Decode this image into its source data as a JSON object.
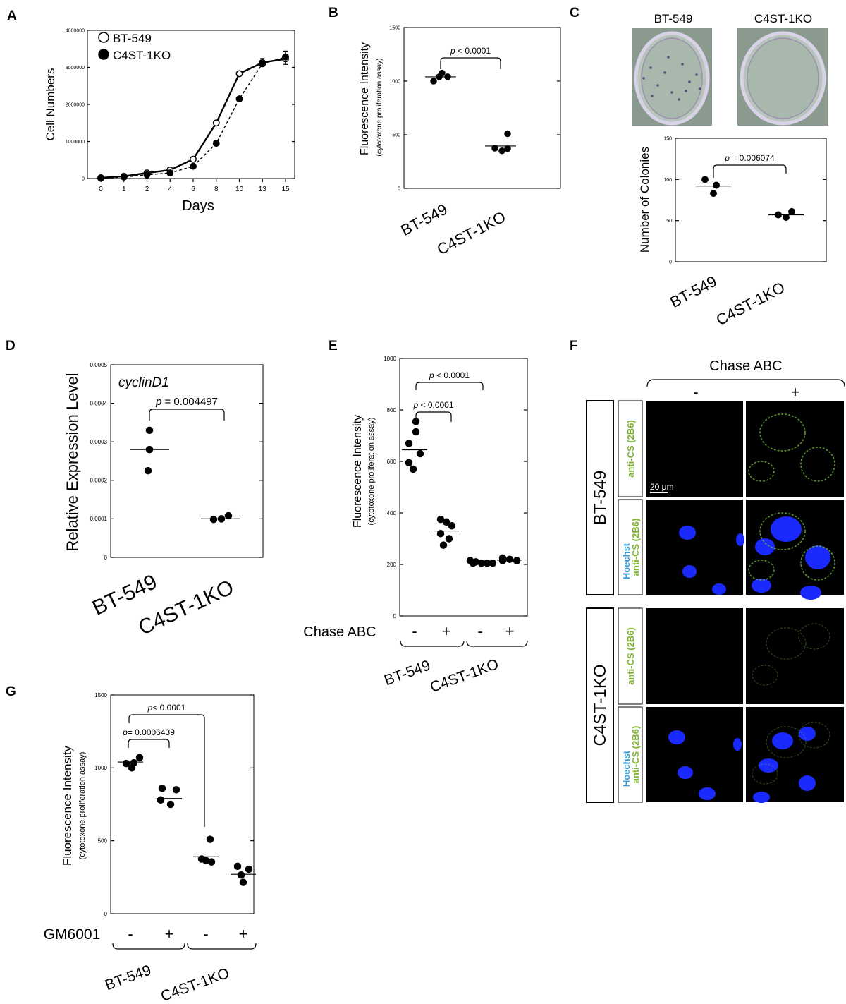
{
  "panel_labels": {
    "A": "A",
    "B": "B",
    "C": "C",
    "D": "D",
    "E": "E",
    "F": "F",
    "G": "G"
  },
  "chart_data": [
    {
      "panel": "A",
      "type": "line",
      "xlabel": "Days",
      "ylabel": "Cell Numbers",
      "x": [
        "0",
        "1",
        "2",
        "4",
        "6",
        "8",
        "10",
        "13",
        "15"
      ],
      "yticks": [
        "0",
        "1000000",
        "2000000",
        "3000000",
        "4000000"
      ],
      "ylim": [
        0,
        4000000
      ],
      "legend_position": "top-left",
      "series": [
        {
          "name": "BT-549",
          "marker": "open",
          "line": "solid",
          "values": [
            20000,
            60000,
            150000,
            230000,
            520000,
            1500000,
            2830000,
            3130000,
            3230000
          ]
        },
        {
          "name": "C4ST-1KO",
          "marker": "filled",
          "line": "dashed",
          "values": [
            10000,
            40000,
            100000,
            150000,
            330000,
            950000,
            2150000,
            3100000,
            3280000
          ]
        }
      ]
    },
    {
      "panel": "B",
      "type": "scatter",
      "ylabel": "Fluorescence Intensity",
      "ylabel2": "(cytotoxone proliferation assay)",
      "categories": [
        "BT-549",
        "C4ST-1KO"
      ],
      "yticks": [
        "0",
        "500",
        "1000",
        "1500"
      ],
      "ylim": [
        0,
        1500
      ],
      "points": [
        [
          1000,
          1040,
          1040,
          1075
        ],
        [
          510,
          375,
          350,
          370
        ]
      ],
      "means": [
        1040,
        395
      ],
      "comparisons": [
        {
          "from": 0,
          "to": 1,
          "label": "p < 0.0001"
        }
      ]
    },
    {
      "panel": "C",
      "type": "scatter",
      "ylabel": "Number of Colonies",
      "categories": [
        "BT-549",
        "C4ST-1KO"
      ],
      "yticks": [
        "0",
        "50",
        "100",
        "150"
      ],
      "ylim": [
        0,
        150
      ],
      "points": [
        [
          100,
          93,
          83
        ],
        [
          57,
          54,
          61
        ]
      ],
      "means": [
        92,
        57
      ],
      "comparisons": [
        {
          "from": 0,
          "to": 1,
          "label": "p = 0.006074"
        }
      ]
    },
    {
      "panel": "D",
      "type": "scatter",
      "ylabel": "Relative Expression Level",
      "annotation": "cyclinD1",
      "categories": [
        "BT-549",
        "C4ST-1KO"
      ],
      "yticks": [
        "0",
        "0.0001",
        "0.0002",
        "0.0003",
        "0.0004",
        "0.0005"
      ],
      "ylim": [
        0,
        0.0005
      ],
      "points": [
        [
          0.00033,
          0.00028,
          0.000225
        ],
        [
          9.85e-05,
          0.0001,
          0.000108
        ]
      ],
      "means": [
        0.00028,
        0.0001
      ],
      "comparisons": [
        {
          "from": 0,
          "to": 1,
          "label": "p = 0.004497"
        }
      ]
    },
    {
      "panel": "E",
      "type": "scatter",
      "ylabel": "Fluorescence Intensity",
      "ylabel2": "(cytotoxone proliferation assay)",
      "treatment_label": "Chase ABC",
      "categories": [
        "-",
        "+",
        "-",
        "+"
      ],
      "groups": [
        "BT-549",
        "C4ST-1KO"
      ],
      "yticks": [
        "0",
        "200",
        "400",
        "600",
        "800",
        "1000"
      ],
      "ylim": [
        0,
        1000
      ],
      "points": [
        [
          755,
          715,
          670,
          630,
          595,
          570
        ],
        [
          375,
          365,
          350,
          320,
          300,
          275
        ],
        [
          215,
          210,
          205,
          205,
          205,
          205
        ],
        [
          225,
          220,
          215,
          215,
          215
        ]
      ],
      "means": [
        645,
        330,
        210,
        217
      ],
      "comparisons": [
        {
          "from": 0,
          "to": 1,
          "label": "p < 0.0001"
        },
        {
          "from": 0,
          "to": 2,
          "label": "p < 0.0001"
        }
      ]
    },
    {
      "panel": "G",
      "type": "scatter",
      "ylabel": "Fluorescence Intensity",
      "ylabel2": "(cytotoxone proliferation assay)",
      "treatment_label": "GM6001",
      "categories": [
        "-",
        "+",
        "-",
        "+"
      ],
      "groups": [
        "BT-549",
        "C4ST-1KO"
      ],
      "yticks": [
        "0",
        "500",
        "1000",
        "1500"
      ],
      "ylim": [
        0,
        1500
      ],
      "points": [
        [
          1070,
          1030,
          1035,
          1000
        ],
        [
          860,
          850,
          780,
          750
        ],
        [
          510,
          375,
          365,
          355
        ],
        [
          325,
          305,
          265,
          215
        ]
      ],
      "means": [
        1040,
        790,
        390,
        270
      ],
      "comparisons": [
        {
          "from": 0,
          "to": 1,
          "label": "p= 0.0006439"
        },
        {
          "from": 0,
          "to": 2,
          "label": "p< 0.0001"
        }
      ]
    }
  ],
  "panel_C_photos": {
    "left_title": "BT-549",
    "right_title": "C4ST-1KO"
  },
  "panel_F": {
    "header": "Chase ABC",
    "columns": [
      "-",
      "+"
    ],
    "cell_lines": [
      "BT-549",
      "C4ST-1KO"
    ],
    "stain_top": "anti-CS (2B6)",
    "stain_bottom_1": "Hoechst",
    "stain_bottom_2": "anti-CS (2B6)",
    "scale_bar": "20 μm",
    "colors": {
      "background": "#000000",
      "nuclei": "#1a2aff",
      "stain": "#6fb53a",
      "hoechst_text": "#2f9cd8",
      "cs_text": "#7db32e"
    }
  }
}
